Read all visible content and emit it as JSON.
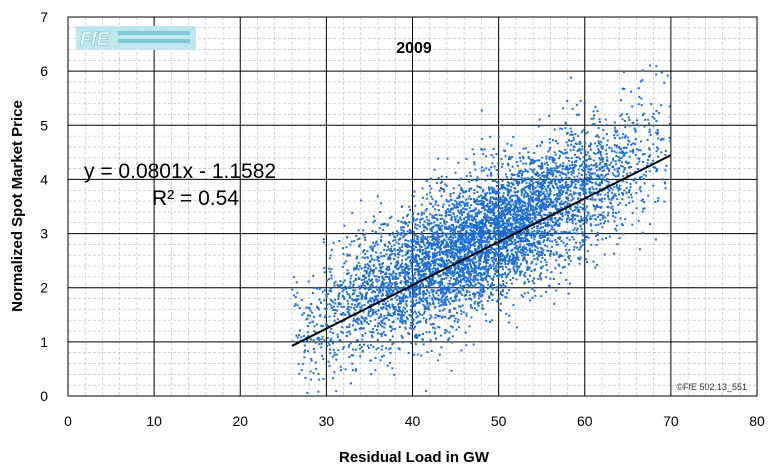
{
  "chart_data": {
    "type": "scatter",
    "title": "2009",
    "xlabel": "Residual Load in GW",
    "ylabel": "Normalized Spot Market Price",
    "xlim": [
      0,
      80
    ],
    "ylim": [
      0,
      7
    ],
    "xticks": [
      0,
      10,
      20,
      30,
      40,
      50,
      60,
      70,
      80
    ],
    "yticks": [
      0,
      1,
      2,
      3,
      4,
      5,
      6,
      7
    ],
    "grid": true,
    "minor_grid": true,
    "marker_color": "#1f6fd0",
    "trendline": {
      "equation": "y = 0.0801x - 1.1582",
      "r_squared": "R² = 0.54",
      "slope": 0.0801,
      "intercept": -1.1582,
      "x_range": [
        26,
        70
      ],
      "color": "#000000"
    },
    "cloud": {
      "x_range": [
        26,
        70
      ],
      "approx_points": 6000,
      "mean_x": 48,
      "sd_x": 9.5,
      "residual_sd": 0.62,
      "y_min": 0,
      "y_max": 6.2
    },
    "logo_text": "FfE Forschungsstelle für Energiewirtschaft e.V.",
    "credit": "©FfE 502.13_551"
  }
}
